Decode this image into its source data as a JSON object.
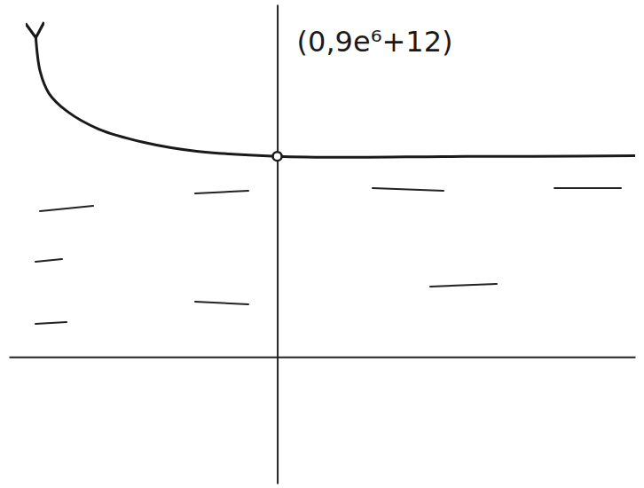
{
  "chart_data": {
    "type": "line",
    "x": [
      -5.4,
      -5.3,
      -5.1,
      -4.7,
      -4.0,
      -3.0,
      -1.8,
      0,
      1.75,
      3.7,
      5.7,
      8.0
    ],
    "series": [
      {
        "color": "#1a1a1a",
        "values": [
          5830,
          5180,
          4780,
          4460,
          4140,
          3900,
          3735,
          3642.86,
          3625,
          3638,
          3640,
          3655
        ]
      }
    ],
    "annotations": [
      {
        "text": "(0,9e⁶+12)",
        "x": 0,
        "y": 3642.86
      }
    ],
    "xlim": [
      -6,
      8
    ],
    "ylim": [
      -2300,
      6400
    ],
    "xticks": [],
    "yticks": [],
    "tick_labels": false,
    "grid": false
  }
}
